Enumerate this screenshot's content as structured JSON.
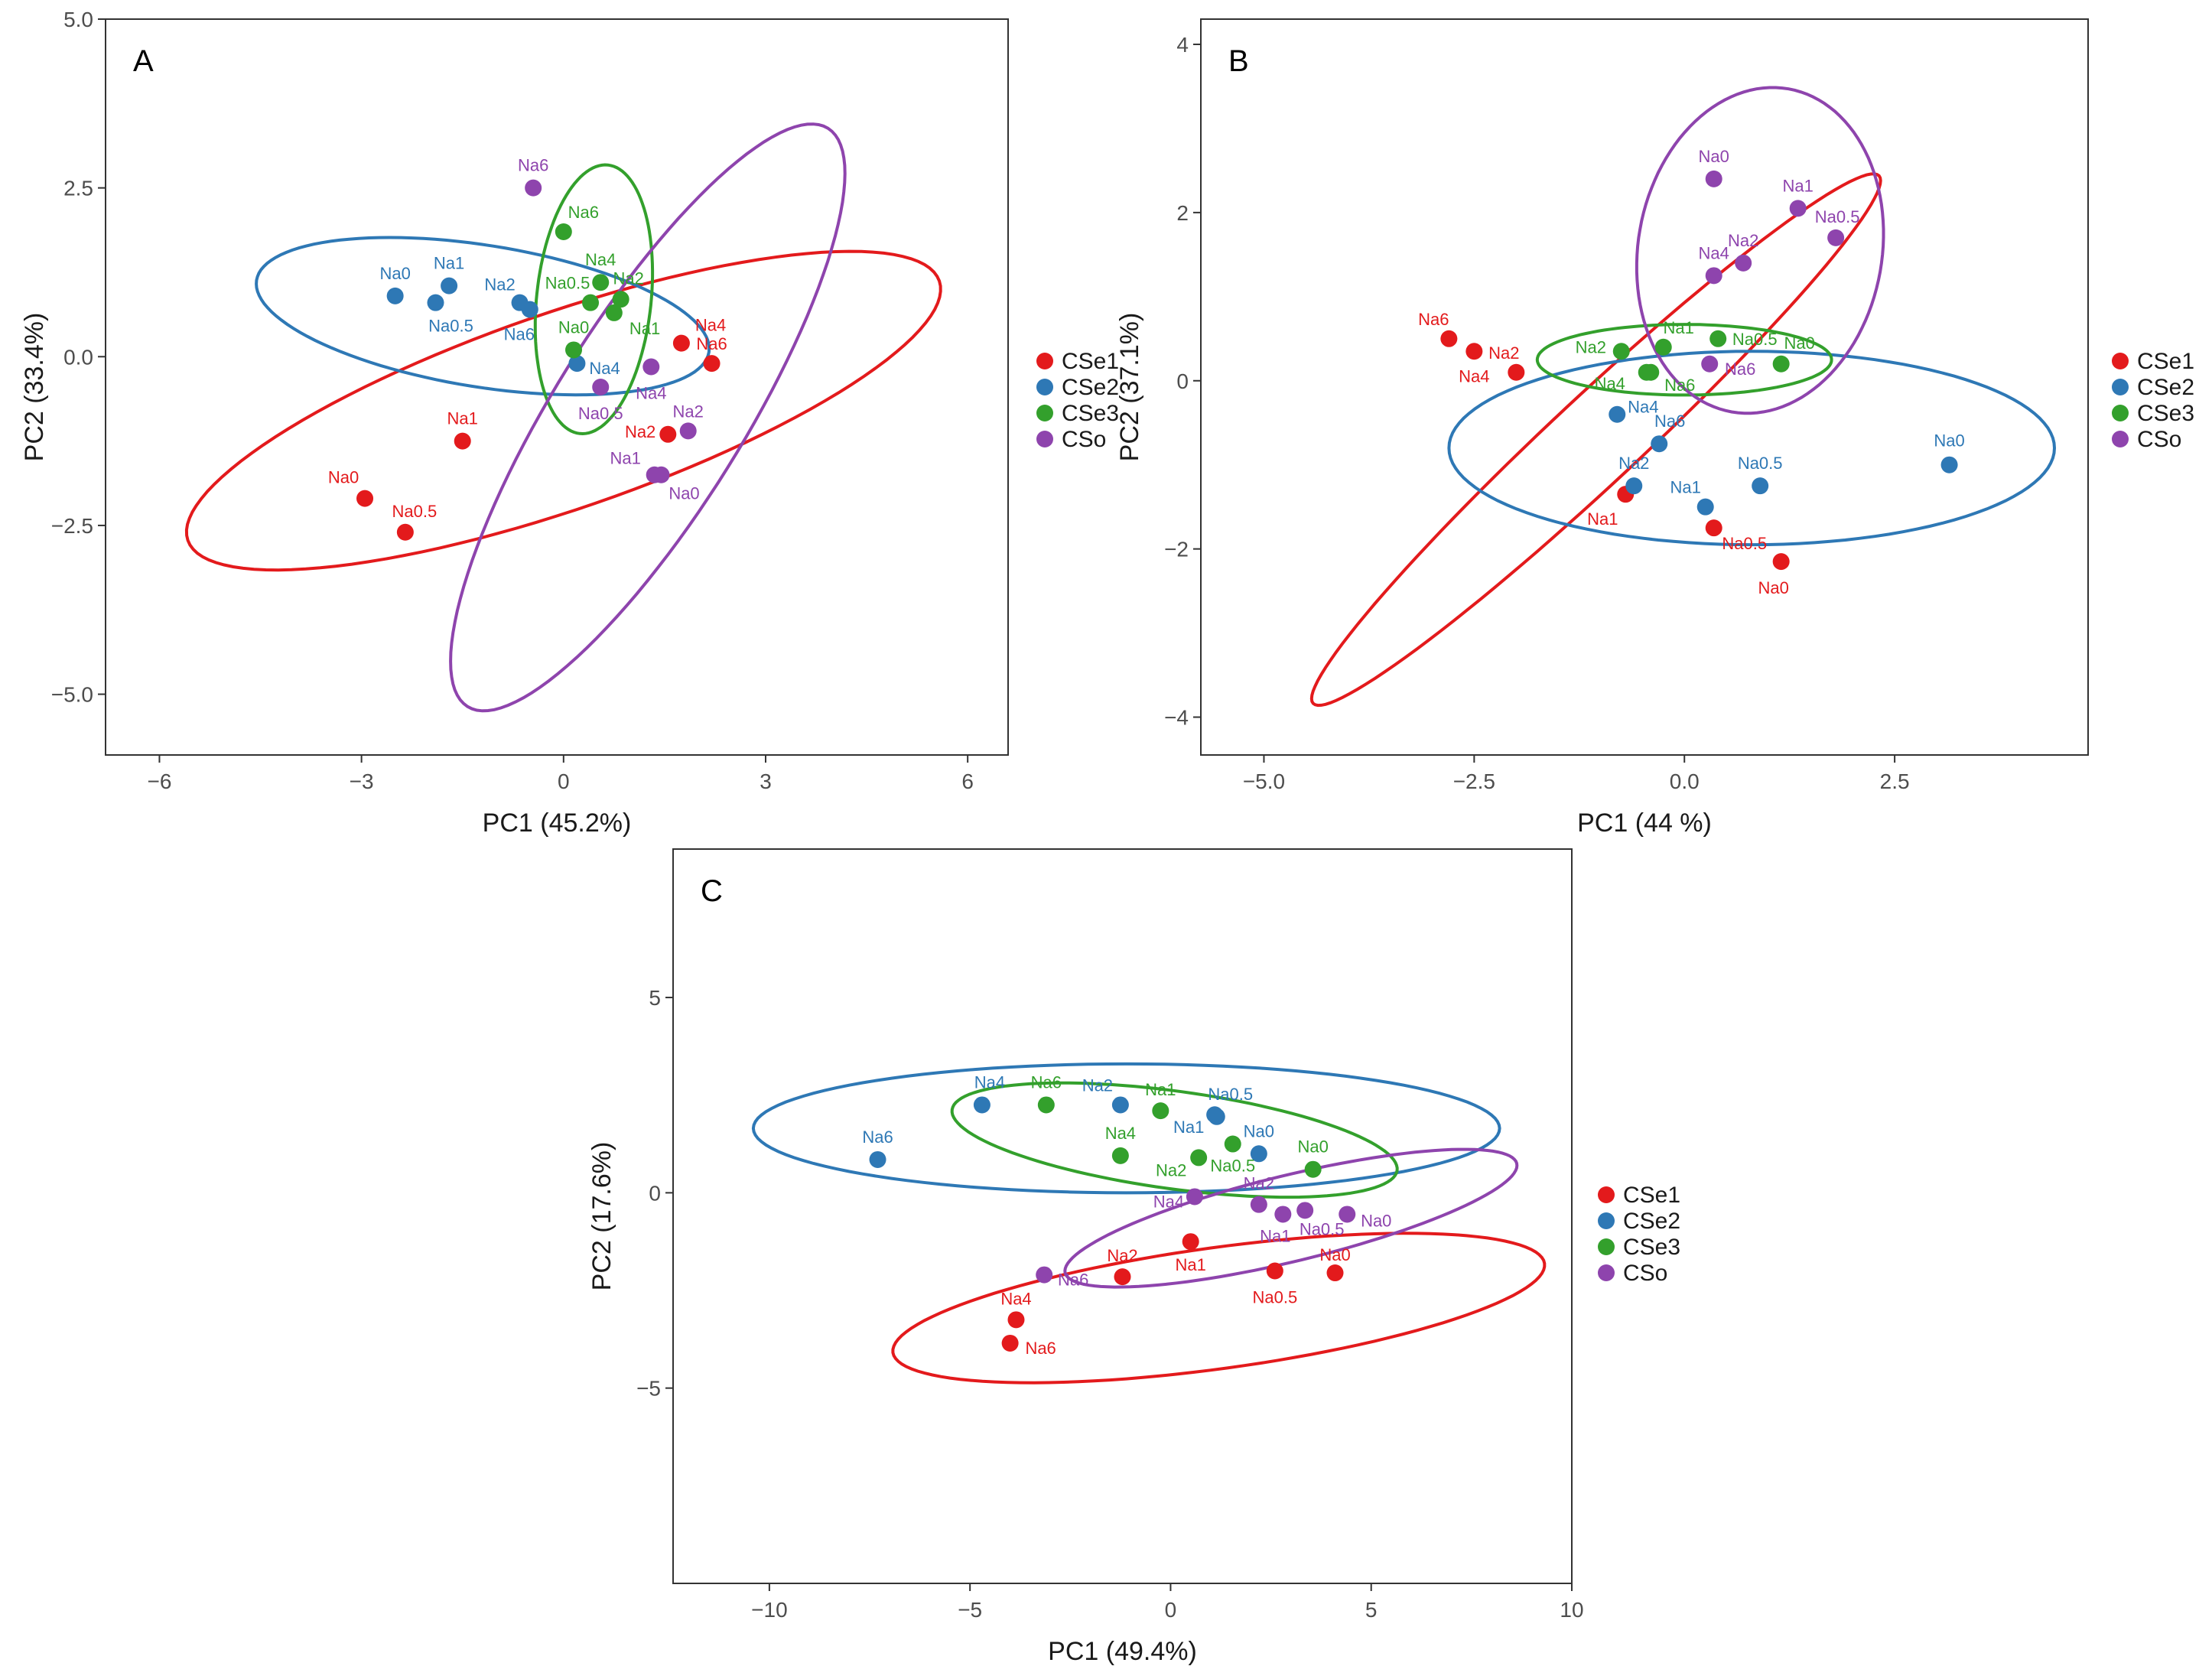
{
  "colors": {
    "CSe1": "#e31a1c",
    "CSe2": "#2e78b5",
    "CSe3": "#33a02c",
    "CSo": "#8e44ad"
  },
  "chart_data": [
    {
      "type": "scatter",
      "panel": "A",
      "title": "",
      "xlabel": "PC1 (45.2%)",
      "ylabel": "PC2 (33.4%)",
      "xlim": [
        -6.8,
        6.6
      ],
      "ylim": [
        -5.9,
        5.0
      ],
      "xticks": [
        -6,
        -3,
        0,
        3,
        6
      ],
      "xtick_labels": [
        "−6",
        "−3",
        "0",
        "3",
        "6"
      ],
      "yticks": [
        -5.0,
        -2.5,
        0.0,
        2.5,
        5.0
      ],
      "ytick_labels": [
        "−5.0",
        "−2.5",
        "0.0",
        "2.5",
        "5.0"
      ],
      "legend": [
        "CSe1",
        "CSe2",
        "CSe3",
        "CSo"
      ],
      "legend_position": "right",
      "series": [
        {
          "name": "CSe1",
          "points": [
            {
              "label": "Na0",
              "x": -2.95,
              "y": -2.1
            },
            {
              "label": "Na0.5",
              "x": -2.35,
              "y": -2.6
            },
            {
              "label": "Na1",
              "x": -1.5,
              "y": -1.25
            },
            {
              "label": "Na2",
              "x": 1.55,
              "y": -1.15
            },
            {
              "label": "Na4",
              "x": 1.75,
              "y": 0.2
            },
            {
              "label": "Na6",
              "x": 2.2,
              "y": -0.1
            }
          ]
        },
        {
          "name": "CSe2",
          "points": [
            {
              "label": "Na0",
              "x": -2.5,
              "y": 0.9
            },
            {
              "label": "Na1",
              "x": -1.7,
              "y": 1.05
            },
            {
              "label": "Na0.5",
              "x": -1.9,
              "y": 0.8
            },
            {
              "label": "Na2",
              "x": -0.65,
              "y": 0.8
            },
            {
              "label": "Na6",
              "x": -0.5,
              "y": 0.7
            },
            {
              "label": "Na4",
              "x": 0.2,
              "y": -0.1
            }
          ]
        },
        {
          "name": "CSe3",
          "points": [
            {
              "label": "Na6",
              "x": 0.0,
              "y": 1.85
            },
            {
              "label": "Na4",
              "x": 0.55,
              "y": 1.1
            },
            {
              "label": "Na2",
              "x": 0.85,
              "y": 0.85
            },
            {
              "label": "Na0.5",
              "x": 0.4,
              "y": 0.8
            },
            {
              "label": "Na1",
              "x": 0.75,
              "y": 0.65
            },
            {
              "label": "Na0",
              "x": 0.15,
              "y": 0.1
            }
          ]
        },
        {
          "name": "CSo",
          "points": [
            {
              "label": "Na6",
              "x": -0.45,
              "y": 2.5
            },
            {
              "label": "Na4",
              "x": 1.3,
              "y": -0.15
            },
            {
              "label": "Na0.5",
              "x": 0.55,
              "y": -0.45
            },
            {
              "label": "Na2",
              "x": 1.85,
              "y": -1.1
            },
            {
              "label": "Na1",
              "x": 1.35,
              "y": -1.75
            },
            {
              "label": "Na0",
              "x": 1.45,
              "y": -1.75
            }
          ]
        }
      ],
      "ellipses": [
        {
          "name": "CSe1",
          "cx": 0.0,
          "cy": -0.8,
          "rx": 5.9,
          "ry": 1.45,
          "angle_deg": 19
        },
        {
          "name": "CSe2",
          "cx": -1.2,
          "cy": 0.6,
          "rx": 3.4,
          "ry": 1.05,
          "angle_deg": -9
        },
        {
          "name": "CSe3",
          "cx": 0.45,
          "cy": 0.85,
          "rx": 0.85,
          "ry": 2.0,
          "angle_deg": -6
        },
        {
          "name": "CSo",
          "cx": 1.25,
          "cy": -0.9,
          "rx": 1.4,
          "ry": 5.05,
          "angle_deg": -32
        }
      ]
    },
    {
      "type": "scatter",
      "panel": "B",
      "title": "",
      "xlabel": "PC1 (44   %)",
      "ylabel": "PC2 (37.1%)",
      "xlim": [
        -5.75,
        4.8
      ],
      "ylim": [
        -4.45,
        4.3
      ],
      "xticks": [
        -5.0,
        -2.5,
        0.0,
        2.5
      ],
      "xtick_labels": [
        "−5.0",
        "−2.5",
        "0.0",
        "2.5"
      ],
      "yticks": [
        -4,
        -2,
        0,
        2,
        4
      ],
      "ytick_labels": [
        "−4",
        "−2",
        "0",
        "2",
        "4"
      ],
      "legend": [
        "CSe1",
        "CSe2",
        "CSe3",
        "CSo"
      ],
      "legend_position": "right",
      "series": [
        {
          "name": "CSe1",
          "points": [
            {
              "label": "Na6",
              "x": -2.8,
              "y": 0.5
            },
            {
              "label": "Na4",
              "x": -2.5,
              "y": 0.35
            },
            {
              "label": "Na2",
              "x": -2.0,
              "y": 0.1
            },
            {
              "label": "Na1",
              "x": -0.7,
              "y": -1.35
            },
            {
              "label": "Na0.5",
              "x": 0.35,
              "y": -1.75
            },
            {
              "label": "Na0",
              "x": 1.15,
              "y": -2.15
            }
          ]
        },
        {
          "name": "CSe2",
          "points": [
            {
              "label": "Na4",
              "x": -0.8,
              "y": -0.4
            },
            {
              "label": "Na6",
              "x": -0.3,
              "y": -0.75
            },
            {
              "label": "Na2",
              "x": -0.6,
              "y": -1.25
            },
            {
              "label": "Na1",
              "x": 0.25,
              "y": -1.5
            },
            {
              "label": "Na0.5",
              "x": 0.9,
              "y": -1.25
            },
            {
              "label": "Na0",
              "x": 3.15,
              "y": -1.0
            }
          ]
        },
        {
          "name": "CSe3",
          "points": [
            {
              "label": "Na2",
              "x": -0.75,
              "y": 0.35
            },
            {
              "label": "Na1",
              "x": -0.25,
              "y": 0.4
            },
            {
              "label": "Na0.5",
              "x": 0.4,
              "y": 0.5
            },
            {
              "label": "Na0",
              "x": 1.15,
              "y": 0.2
            },
            {
              "label": "Na4",
              "x": -0.45,
              "y": 0.1
            },
            {
              "label": "Na6",
              "x": -0.4,
              "y": 0.1
            }
          ]
        },
        {
          "name": "CSo",
          "points": [
            {
              "label": "Na0",
              "x": 0.35,
              "y": 2.4
            },
            {
              "label": "Na1",
              "x": 1.35,
              "y": 2.05
            },
            {
              "label": "Na0.5",
              "x": 1.8,
              "y": 1.7
            },
            {
              "label": "Na2",
              "x": 0.7,
              "y": 1.4
            },
            {
              "label": "Na4",
              "x": 0.35,
              "y": 1.25
            },
            {
              "label": "Na6",
              "x": 0.3,
              "y": 0.2
            }
          ]
        }
      ],
      "ellipses": [
        {
          "name": "CSe1",
          "cx": -1.05,
          "cy": -0.7,
          "rx": 4.6,
          "ry": 0.52,
          "angle_deg": 43
        },
        {
          "name": "CSe2",
          "cx": 0.8,
          "cy": -0.8,
          "rx": 3.6,
          "ry": 1.15,
          "angle_deg": 0
        },
        {
          "name": "CSe3",
          "cx": 0.0,
          "cy": 0.25,
          "rx": 1.75,
          "ry": 0.42,
          "angle_deg": 0
        },
        {
          "name": "CSo",
          "cx": 0.9,
          "cy": 1.55,
          "rx": 1.45,
          "ry": 1.95,
          "angle_deg": -10
        }
      ]
    },
    {
      "type": "scatter",
      "panel": "C",
      "title": "",
      "xlabel": "PC1 (49.4%)",
      "ylabel": "PC2 (17.6%)",
      "xlim": [
        -12.4,
        10.0
      ],
      "ylim": [
        -10.0,
        8.8
      ],
      "xticks": [
        -10,
        -5,
        0,
        5,
        10
      ],
      "xtick_labels": [
        "−10",
        "−5",
        "0",
        "5",
        "10"
      ],
      "yticks": [
        -5,
        0,
        5
      ],
      "ytick_labels": [
        "−5",
        "0",
        "5"
      ],
      "legend": [
        "CSe1",
        "CSe2",
        "CSe3",
        "CSo"
      ],
      "legend_position": "right",
      "series": [
        {
          "name": "CSe1",
          "points": [
            {
              "label": "Na4",
              "x": -3.85,
              "y": -3.25
            },
            {
              "label": "Na6",
              "x": -4.0,
              "y": -3.85
            },
            {
              "label": "Na2",
              "x": -1.2,
              "y": -2.15
            },
            {
              "label": "Na1",
              "x": 0.5,
              "y": -1.25
            },
            {
              "label": "Na0.5",
              "x": 2.6,
              "y": -2.0
            },
            {
              "label": "Na0",
              "x": 4.1,
              "y": -2.05
            }
          ]
        },
        {
          "name": "CSe2",
          "points": [
            {
              "label": "Na6",
              "x": -7.3,
              "y": 0.85
            },
            {
              "label": "Na4",
              "x": -4.7,
              "y": 2.25
            },
            {
              "label": "Na2",
              "x": -1.25,
              "y": 2.25
            },
            {
              "label": "Na0.5",
              "x": 1.15,
              "y": 1.95
            },
            {
              "label": "Na1",
              "x": 1.1,
              "y": 2.0
            },
            {
              "label": "Na0",
              "x": 2.2,
              "y": 1.0
            }
          ]
        },
        {
          "name": "CSe3",
          "points": [
            {
              "label": "Na6",
              "x": -3.1,
              "y": 2.25
            },
            {
              "label": "Na1",
              "x": -0.25,
              "y": 2.1
            },
            {
              "label": "Na4",
              "x": -1.25,
              "y": 0.95
            },
            {
              "label": "Na2",
              "x": 0.7,
              "y": 0.9
            },
            {
              "label": "Na0.5",
              "x": 1.55,
              "y": 1.25
            },
            {
              "label": "Na0",
              "x": 3.55,
              "y": 0.6
            }
          ]
        },
        {
          "name": "CSo",
          "points": [
            {
              "label": "Na2",
              "x": 2.2,
              "y": -0.3
            },
            {
              "label": "Na4",
              "x": 0.6,
              "y": -0.1
            },
            {
              "label": "Na1",
              "x": 2.8,
              "y": -0.55
            },
            {
              "label": "Na0.5",
              "x": 3.35,
              "y": -0.45
            },
            {
              "label": "Na0",
              "x": 4.4,
              "y": -0.55
            },
            {
              "label": "Na6",
              "x": -3.15,
              "y": -2.1
            }
          ]
        }
      ],
      "ellipses": [
        {
          "name": "CSe1",
          "cx": 1.2,
          "cy": -2.95,
          "rx": 8.2,
          "ry": 1.55,
          "angle_deg": 8
        },
        {
          "name": "CSe2",
          "cx": -1.1,
          "cy": 1.65,
          "rx": 9.3,
          "ry": 1.65,
          "angle_deg": 0
        },
        {
          "name": "CSe3",
          "cx": 0.1,
          "cy": 1.35,
          "rx": 5.6,
          "ry": 1.25,
          "angle_deg": -8
        },
        {
          "name": "CSo",
          "cx": 3.0,
          "cy": -0.65,
          "rx": 5.8,
          "ry": 1.1,
          "angle_deg": 14
        }
      ]
    }
  ]
}
